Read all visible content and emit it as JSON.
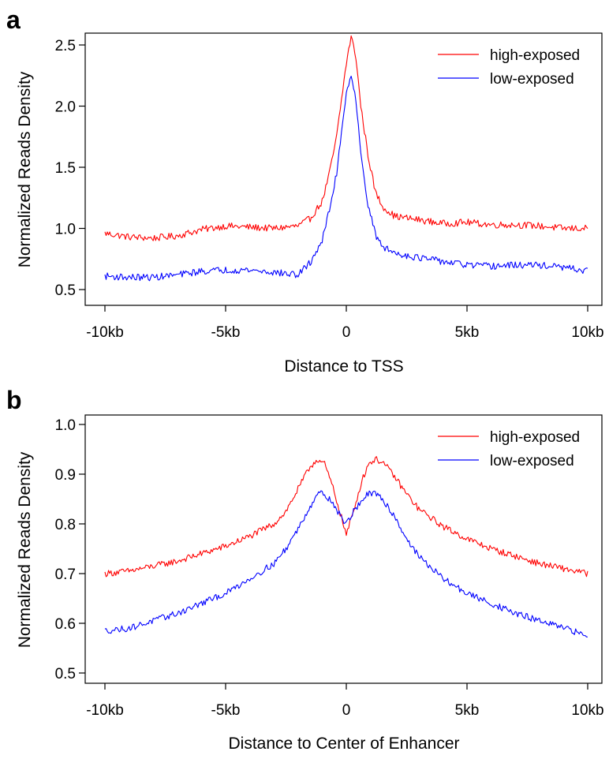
{
  "chart_data": [
    {
      "panel": "a",
      "type": "line",
      "title": "",
      "xlabel": "Distance to TSS",
      "ylabel": "Normalized Reads Density",
      "xlim": [
        -10,
        10
      ],
      "ylim": [
        0.5,
        2.6
      ],
      "xticks": [
        -10,
        -5,
        0,
        5,
        10
      ],
      "xtick_labels": [
        "-10kb",
        "-5kb",
        "0",
        "5kb",
        "10kb"
      ],
      "yticks": [
        0.5,
        1.0,
        1.5,
        2.0,
        2.5
      ],
      "ytick_labels": [
        "0.5",
        "1.0",
        "1.5",
        "2.0",
        "2.5"
      ],
      "grid": false,
      "legend": "top-right",
      "x": [
        -10,
        -9,
        -8,
        -7,
        -6,
        -5,
        -4,
        -3,
        -2,
        -1.5,
        -1,
        -0.7,
        -0.4,
        -0.2,
        0,
        0.2,
        0.4,
        0.6,
        0.9,
        1.2,
        1.5,
        2,
        3,
        4,
        5,
        6,
        7,
        8,
        9,
        10
      ],
      "series": [
        {
          "name": "high-exposed",
          "color": "#ff0000",
          "values": [
            0.96,
            0.93,
            0.92,
            0.94,
            0.99,
            1.02,
            1.01,
            1.0,
            1.02,
            1.08,
            1.22,
            1.45,
            1.75,
            2.05,
            2.35,
            2.57,
            2.4,
            2.0,
            1.6,
            1.3,
            1.18,
            1.1,
            1.07,
            1.04,
            1.05,
            1.03,
            1.03,
            1.02,
            1.0,
            1.0
          ]
        },
        {
          "name": "low-exposed",
          "color": "#0000ff",
          "values": [
            0.61,
            0.6,
            0.6,
            0.62,
            0.65,
            0.66,
            0.66,
            0.64,
            0.62,
            0.72,
            0.9,
            1.15,
            1.45,
            1.8,
            2.1,
            2.27,
            2.05,
            1.6,
            1.2,
            0.95,
            0.85,
            0.8,
            0.76,
            0.73,
            0.7,
            0.69,
            0.7,
            0.7,
            0.68,
            0.65
          ]
        }
      ]
    },
    {
      "panel": "b",
      "type": "line",
      "title": "",
      "xlabel": "Distance to Center of Enhancer",
      "ylabel": "Normalized Reads Density",
      "xlim": [
        -10,
        10
      ],
      "ylim": [
        0.5,
        1.0
      ],
      "xticks": [
        -10,
        -5,
        0,
        5,
        10
      ],
      "xtick_labels": [
        "-10kb",
        "-5kb",
        "0",
        "5kb",
        "10kb"
      ],
      "yticks": [
        0.5,
        0.6,
        0.7,
        0.8,
        0.9,
        1.0
      ],
      "ytick_labels": [
        "0.5",
        "0.6",
        "0.7",
        "0.8",
        "0.9",
        "1.0"
      ],
      "grid": false,
      "legend": "top-right",
      "x": [
        -10,
        -9,
        -8,
        -7,
        -6,
        -5,
        -4,
        -3,
        -2.5,
        -2,
        -1.5,
        -1.2,
        -0.9,
        -0.6,
        -0.3,
        0,
        0.3,
        0.6,
        0.9,
        1.2,
        1.5,
        2,
        2.5,
        3,
        4,
        5,
        6,
        7,
        8,
        9,
        10
      ],
      "series": [
        {
          "name": "high-exposed",
          "color": "#ff0000",
          "values": [
            0.7,
            0.705,
            0.715,
            0.725,
            0.74,
            0.755,
            0.775,
            0.8,
            0.825,
            0.87,
            0.915,
            0.93,
            0.92,
            0.88,
            0.83,
            0.778,
            0.825,
            0.88,
            0.92,
            0.93,
            0.925,
            0.895,
            0.86,
            0.83,
            0.795,
            0.77,
            0.75,
            0.735,
            0.72,
            0.71,
            0.7
          ]
        },
        {
          "name": "low-exposed",
          "color": "#0000ff",
          "values": [
            0.585,
            0.59,
            0.605,
            0.62,
            0.64,
            0.66,
            0.69,
            0.72,
            0.75,
            0.79,
            0.835,
            0.862,
            0.86,
            0.845,
            0.82,
            0.8,
            0.825,
            0.845,
            0.86,
            0.86,
            0.85,
            0.815,
            0.77,
            0.735,
            0.69,
            0.66,
            0.64,
            0.62,
            0.605,
            0.59,
            0.575
          ]
        }
      ]
    }
  ]
}
